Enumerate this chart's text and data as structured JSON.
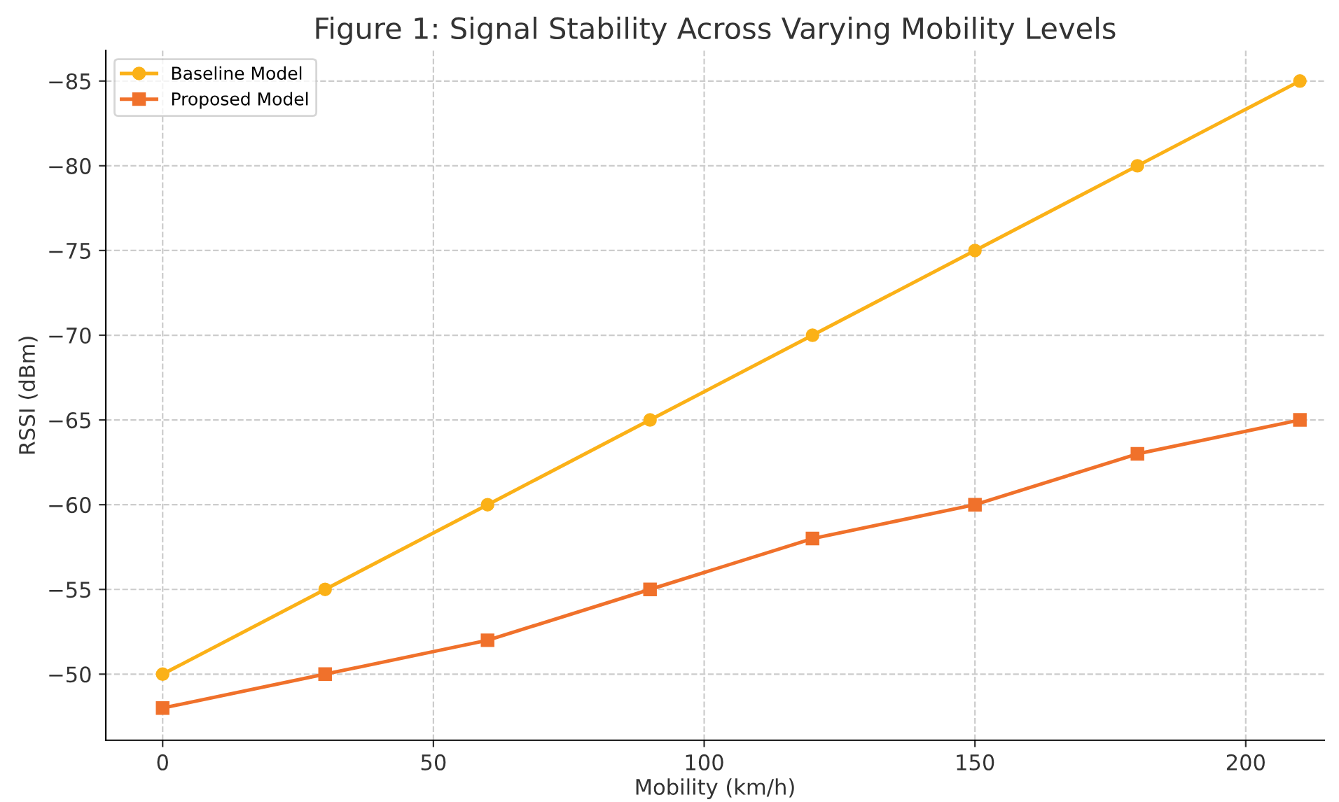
{
  "chart_data": {
    "type": "line",
    "title": "Figure 1: Signal Stability Across Varying Mobility Levels",
    "xlabel": "Mobility (km/h)",
    "ylabel": "RSSI (dBm)",
    "x": [
      0,
      30,
      60,
      90,
      120,
      150,
      180,
      210
    ],
    "series": [
      {
        "name": "Baseline Model",
        "color": "#fbb117",
        "marker": "circle",
        "values": [
          -50,
          -55,
          -60,
          -65,
          -70,
          -75,
          -80,
          -85
        ]
      },
      {
        "name": "Proposed Model",
        "color": "#f0712b",
        "marker": "square",
        "values": [
          -48,
          -50,
          -52,
          -55,
          -58,
          -60,
          -63,
          -65
        ]
      }
    ],
    "xlim": [
      -10.5,
      214.5
    ],
    "xticks": [
      0,
      50,
      100,
      150,
      200
    ],
    "ylim": [
      -46.1,
      -86.8
    ],
    "yticks": [
      {
        "value": -85,
        "label": "−85"
      },
      {
        "value": -80,
        "label": "−80"
      },
      {
        "value": -75,
        "label": "−75"
      },
      {
        "value": -70,
        "label": "−70"
      },
      {
        "value": -65,
        "label": "−65"
      },
      {
        "value": -60,
        "label": "−60"
      },
      {
        "value": -55,
        "label": "−55"
      },
      {
        "value": -50,
        "label": "−50"
      }
    ],
    "grid": true,
    "legend": "top left",
    "line_style": "solid"
  }
}
